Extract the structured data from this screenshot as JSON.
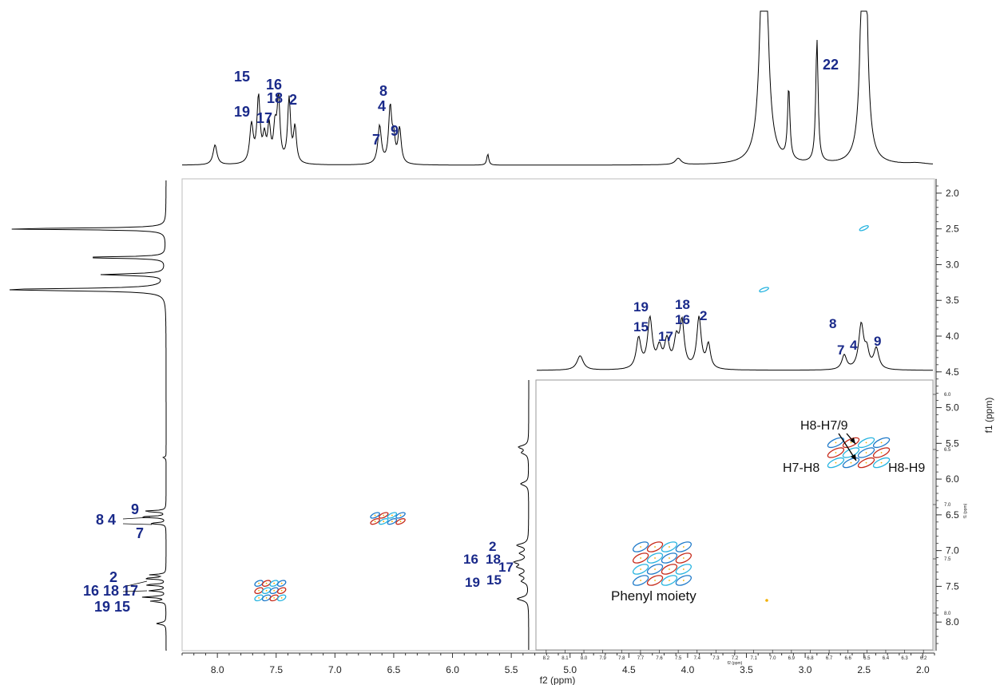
{
  "chart_data": {
    "type": "heatmap",
    "title": "",
    "xlabel": "f2 (ppm)",
    "ylabel": "f1 (ppm)",
    "xlim": [
      8.3,
      1.9
    ],
    "ylim": [
      1.8,
      8.4
    ],
    "x_ticks": [
      "8.0",
      "7.5",
      "7.0",
      "6.5",
      "6.0",
      "5.5",
      "5.0",
      "4.5",
      "4.0",
      "3.5",
      "3.0",
      "2.5",
      "2.0"
    ],
    "x_tick_values": [
      8.0,
      7.5,
      7.0,
      6.5,
      6.0,
      5.5,
      5.0,
      4.5,
      4.0,
      3.5,
      3.0,
      2.5,
      2.0
    ],
    "y_ticks": [
      "2.0",
      "2.5",
      "3.0",
      "3.5",
      "4.0",
      "4.5",
      "5.0",
      "5.5",
      "6.0",
      "6.5",
      "7.0",
      "7.5",
      "8.0"
    ],
    "y_tick_values": [
      2.0,
      2.5,
      3.0,
      3.5,
      4.0,
      4.5,
      5.0,
      5.5,
      6.0,
      6.5,
      7.0,
      7.5,
      8.0
    ],
    "cross_peaks": [
      {
        "f2": 7.55,
        "f1": 7.55,
        "label": ""
      },
      {
        "f2": 6.55,
        "f1": 6.55,
        "label": ""
      },
      {
        "f2": 2.5,
        "f1": 2.5,
        "label": ""
      },
      {
        "f2": 3.35,
        "f1": 3.35,
        "label": ""
      }
    ],
    "top_spectrum_labels": [
      "15",
      "19",
      "16",
      "18",
      "17",
      "2",
      "8",
      "4",
      "7",
      "9",
      "22"
    ],
    "left_spectrum_labels": [
      "9",
      "8 4",
      "7",
      "2",
      "16 18",
      "17",
      "19 15"
    ],
    "inset": {
      "x_ticks": [
        "8.2",
        "8.1",
        "8.0",
        "7.9",
        "7.8",
        "7.7",
        "7.6",
        "7.5",
        "7.4",
        "7.3",
        "7.2",
        "7.1",
        "7.0",
        "6.9",
        "6.8",
        "6.7",
        "6.6",
        "6.5",
        "6.4",
        "6.3",
        "6.2"
      ],
      "x_tick_values": [
        8.2,
        8.1,
        8.0,
        7.9,
        7.8,
        7.7,
        7.6,
        7.5,
        7.4,
        7.3,
        7.2,
        7.1,
        7.0,
        6.9,
        6.8,
        6.7,
        6.6,
        6.5,
        6.4,
        6.3,
        6.2
      ],
      "x_tick_label_small": "f2 (ppm)",
      "y_ticks": [
        "6.0",
        "6.5",
        "7.0",
        "7.5",
        "8.0"
      ],
      "y_label_small": "f1 (ppm)",
      "top_labels": [
        "19",
        "15",
        "18",
        "16",
        "17",
        "2",
        "8",
        "7",
        "4",
        "9"
      ],
      "left_labels": [
        "2",
        "16",
        "18",
        "17",
        "19",
        "15"
      ],
      "annotations": [
        "H8-H7/9",
        "H7-H8",
        "H8-H9",
        "Phenyl moiety"
      ]
    }
  }
}
